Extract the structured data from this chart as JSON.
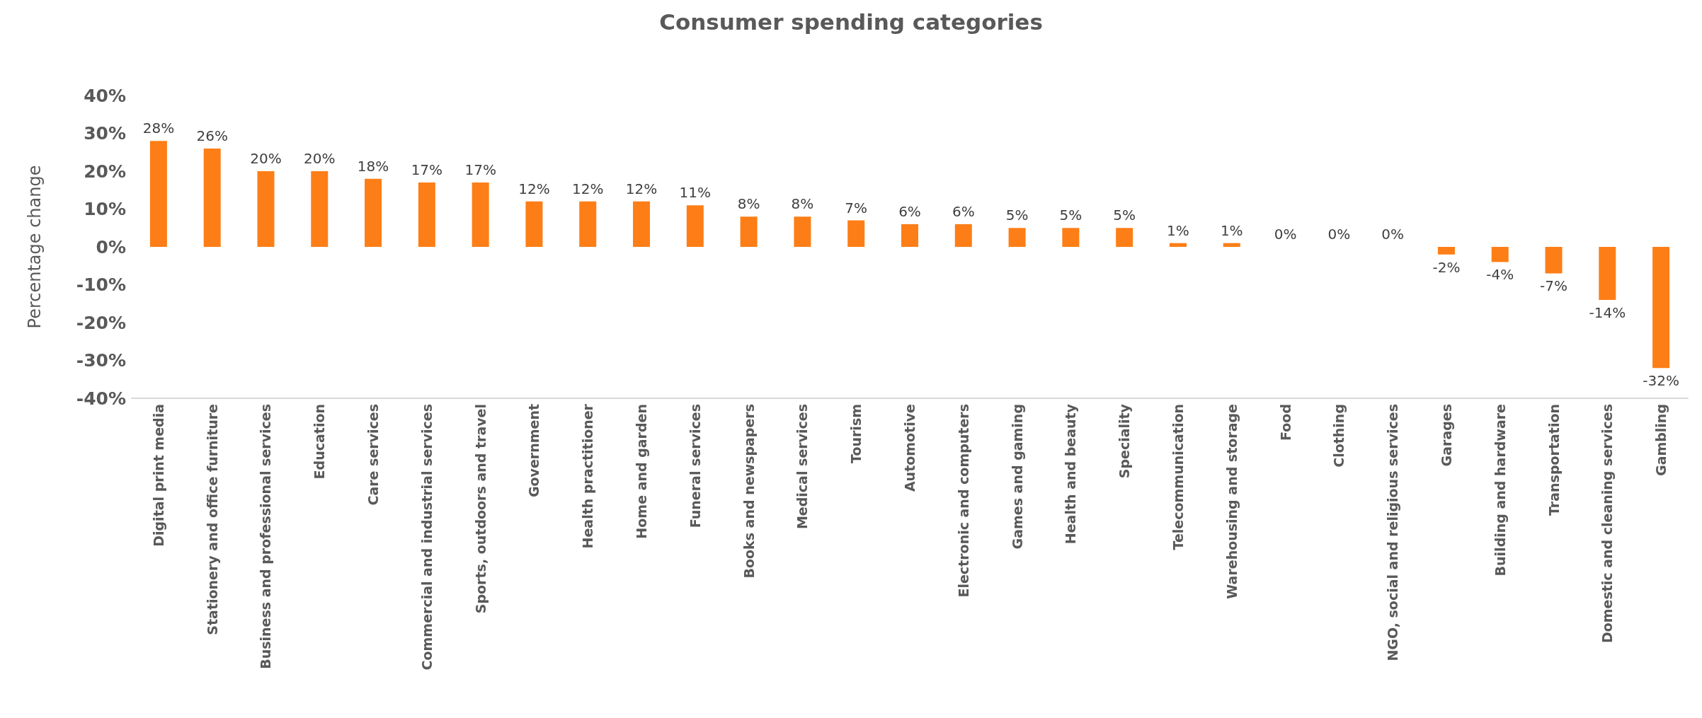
{
  "chart_data": {
    "type": "bar",
    "title": "Consumer spending categories",
    "ylabel": "Percentage change",
    "categories": [
      "Digital print media",
      "Stationery and office furniture",
      "Business and professional services",
      "Education",
      "Care services",
      "Commercial and industrial services",
      "Sports, outdoors and travel",
      "Government",
      "Health practitioner",
      "Home and garden",
      "Funeral services",
      "Books and newspapers",
      "Medical services",
      "Tourism",
      "Automotive",
      "Electronic and computers",
      "Games and gaming",
      "Health and beauty",
      "Speciality",
      "Telecommunication",
      "Warehousing and storage",
      "Food",
      "Clothing",
      "NGO, social and religious services",
      "Garages",
      "Building and hardware",
      "Transportation",
      "Domestic and cleaning services",
      "Gambling"
    ],
    "values": [
      28,
      26,
      20,
      20,
      18,
      17,
      17,
      12,
      12,
      12,
      11,
      8,
      8,
      7,
      6,
      6,
      5,
      5,
      5,
      1,
      1,
      0,
      0,
      0,
      -2,
      -4,
      -7,
      -14,
      -32
    ],
    "value_labels": [
      "28%",
      "26%",
      "20%",
      "20%",
      "18%",
      "17%",
      "17%",
      "12%",
      "12%",
      "12%",
      "11%",
      "8%",
      "8%",
      "7%",
      "6%",
      "6%",
      "5%",
      "5%",
      "5%",
      "1%",
      "1%",
      "0%",
      "0%",
      "0%",
      "-2%",
      "-4%",
      "-7%",
      "-14%",
      "-32%"
    ],
    "color": "#fd7e16",
    "ylim": [
      -40,
      40
    ],
    "yticks": [
      {
        "value": -40,
        "label": "-40%"
      },
      {
        "value": -30,
        "label": "-30%"
      },
      {
        "value": -20,
        "label": "-20%"
      },
      {
        "value": -10,
        "label": "-10%"
      },
      {
        "value": 0,
        "label": "0%"
      },
      {
        "value": 10,
        "label": "10%"
      },
      {
        "value": 20,
        "label": "20%"
      },
      {
        "value": 30,
        "label": "30%"
      },
      {
        "value": 40,
        "label": "40%"
      }
    ],
    "grid": false
  }
}
